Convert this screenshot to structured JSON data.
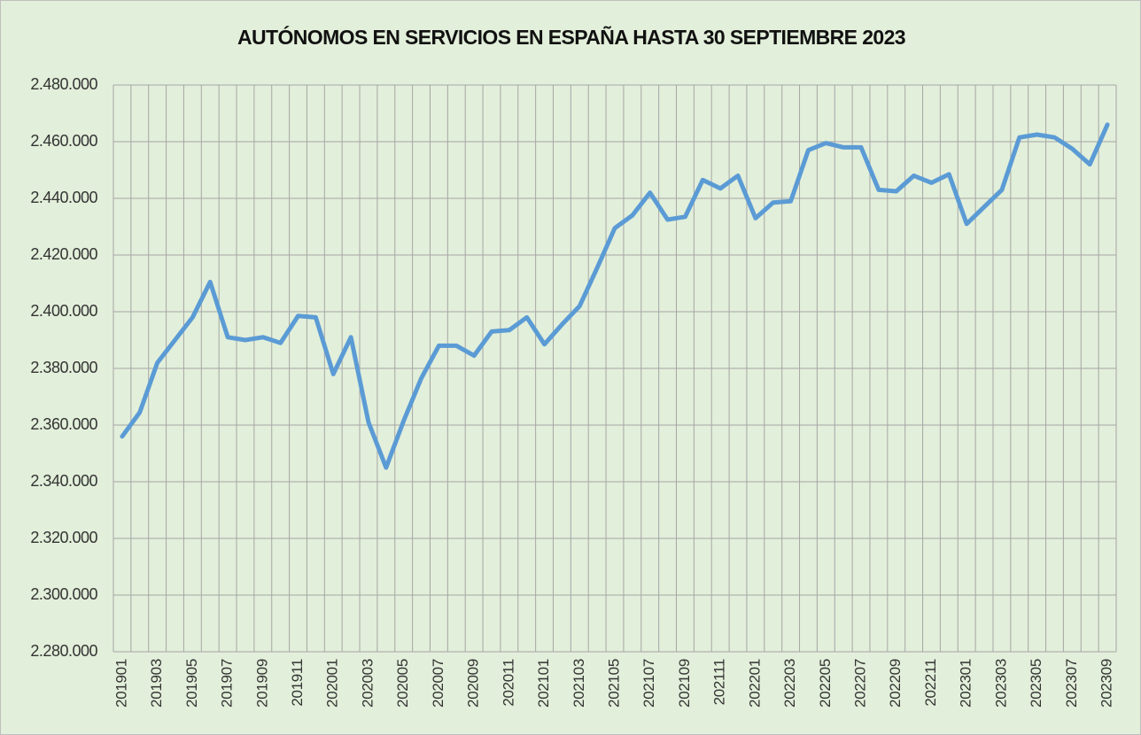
{
  "chart_data": {
    "type": "line",
    "title": "AUTÓNOMOS EN SERVICIOS EN ESPAÑA HASTA 30 SEPTIEMBRE 2023",
    "categories": [
      "201901",
      null,
      "201903",
      null,
      "201905",
      null,
      "201907",
      null,
      "201909",
      null,
      "201911",
      null,
      "202001",
      null,
      "202003",
      null,
      "202005",
      null,
      "202007",
      null,
      "202009",
      null,
      "202011",
      null,
      "202101",
      null,
      "202103",
      null,
      "202105",
      null,
      "202107",
      null,
      "202109",
      null,
      "202111",
      null,
      "202201",
      null,
      "202203",
      null,
      "202205",
      null,
      "202207",
      null,
      "202209",
      null,
      "202211",
      null,
      "202301",
      null,
      "202303",
      null,
      "202305",
      null,
      "202307",
      null,
      "202309"
    ],
    "series": [
      {
        "color": "#5b9bd5",
        "values": [
          2356000,
          2364500,
          2382000,
          2390000,
          2398000,
          2410500,
          2391000,
          2390000,
          2391000,
          2389000,
          2398500,
          2398000,
          2378000,
          2391000,
          2361000,
          2345000,
          2361500,
          2376500,
          2388000,
          2388000,
          2384500,
          2393000,
          2393500,
          2398000,
          2388500,
          2395500,
          2402000,
          2415500,
          2429500,
          2434000,
          2442000,
          2432500,
          2433500,
          2446500,
          2443500,
          2448000,
          2433000,
          2438500,
          2439000,
          2457000,
          2459500,
          2458000,
          2458000,
          2443000,
          2442500,
          2448000,
          2445500,
          2448500,
          2431000,
          2437000,
          2443000,
          2461500,
          2462500,
          2461500,
          2457500,
          2452000,
          2466000
        ]
      }
    ],
    "ylim": [
      2280000,
      2480000
    ],
    "yticks": [
      {
        "value": 2280000,
        "label": "2.280.000"
      },
      {
        "value": 2300000,
        "label": "2.300.000"
      },
      {
        "value": 2320000,
        "label": "2.320.000"
      },
      {
        "value": 2340000,
        "label": "2.340.000"
      },
      {
        "value": 2360000,
        "label": "2.360.000"
      },
      {
        "value": 2380000,
        "label": "2.380.000"
      },
      {
        "value": 2400000,
        "label": "2.400.000"
      },
      {
        "value": 2420000,
        "label": "2.420.000"
      },
      {
        "value": 2440000,
        "label": "2.440.000"
      },
      {
        "value": 2460000,
        "label": "2.460.000"
      },
      {
        "value": 2480000,
        "label": "2.480.000"
      }
    ],
    "grid": true
  }
}
